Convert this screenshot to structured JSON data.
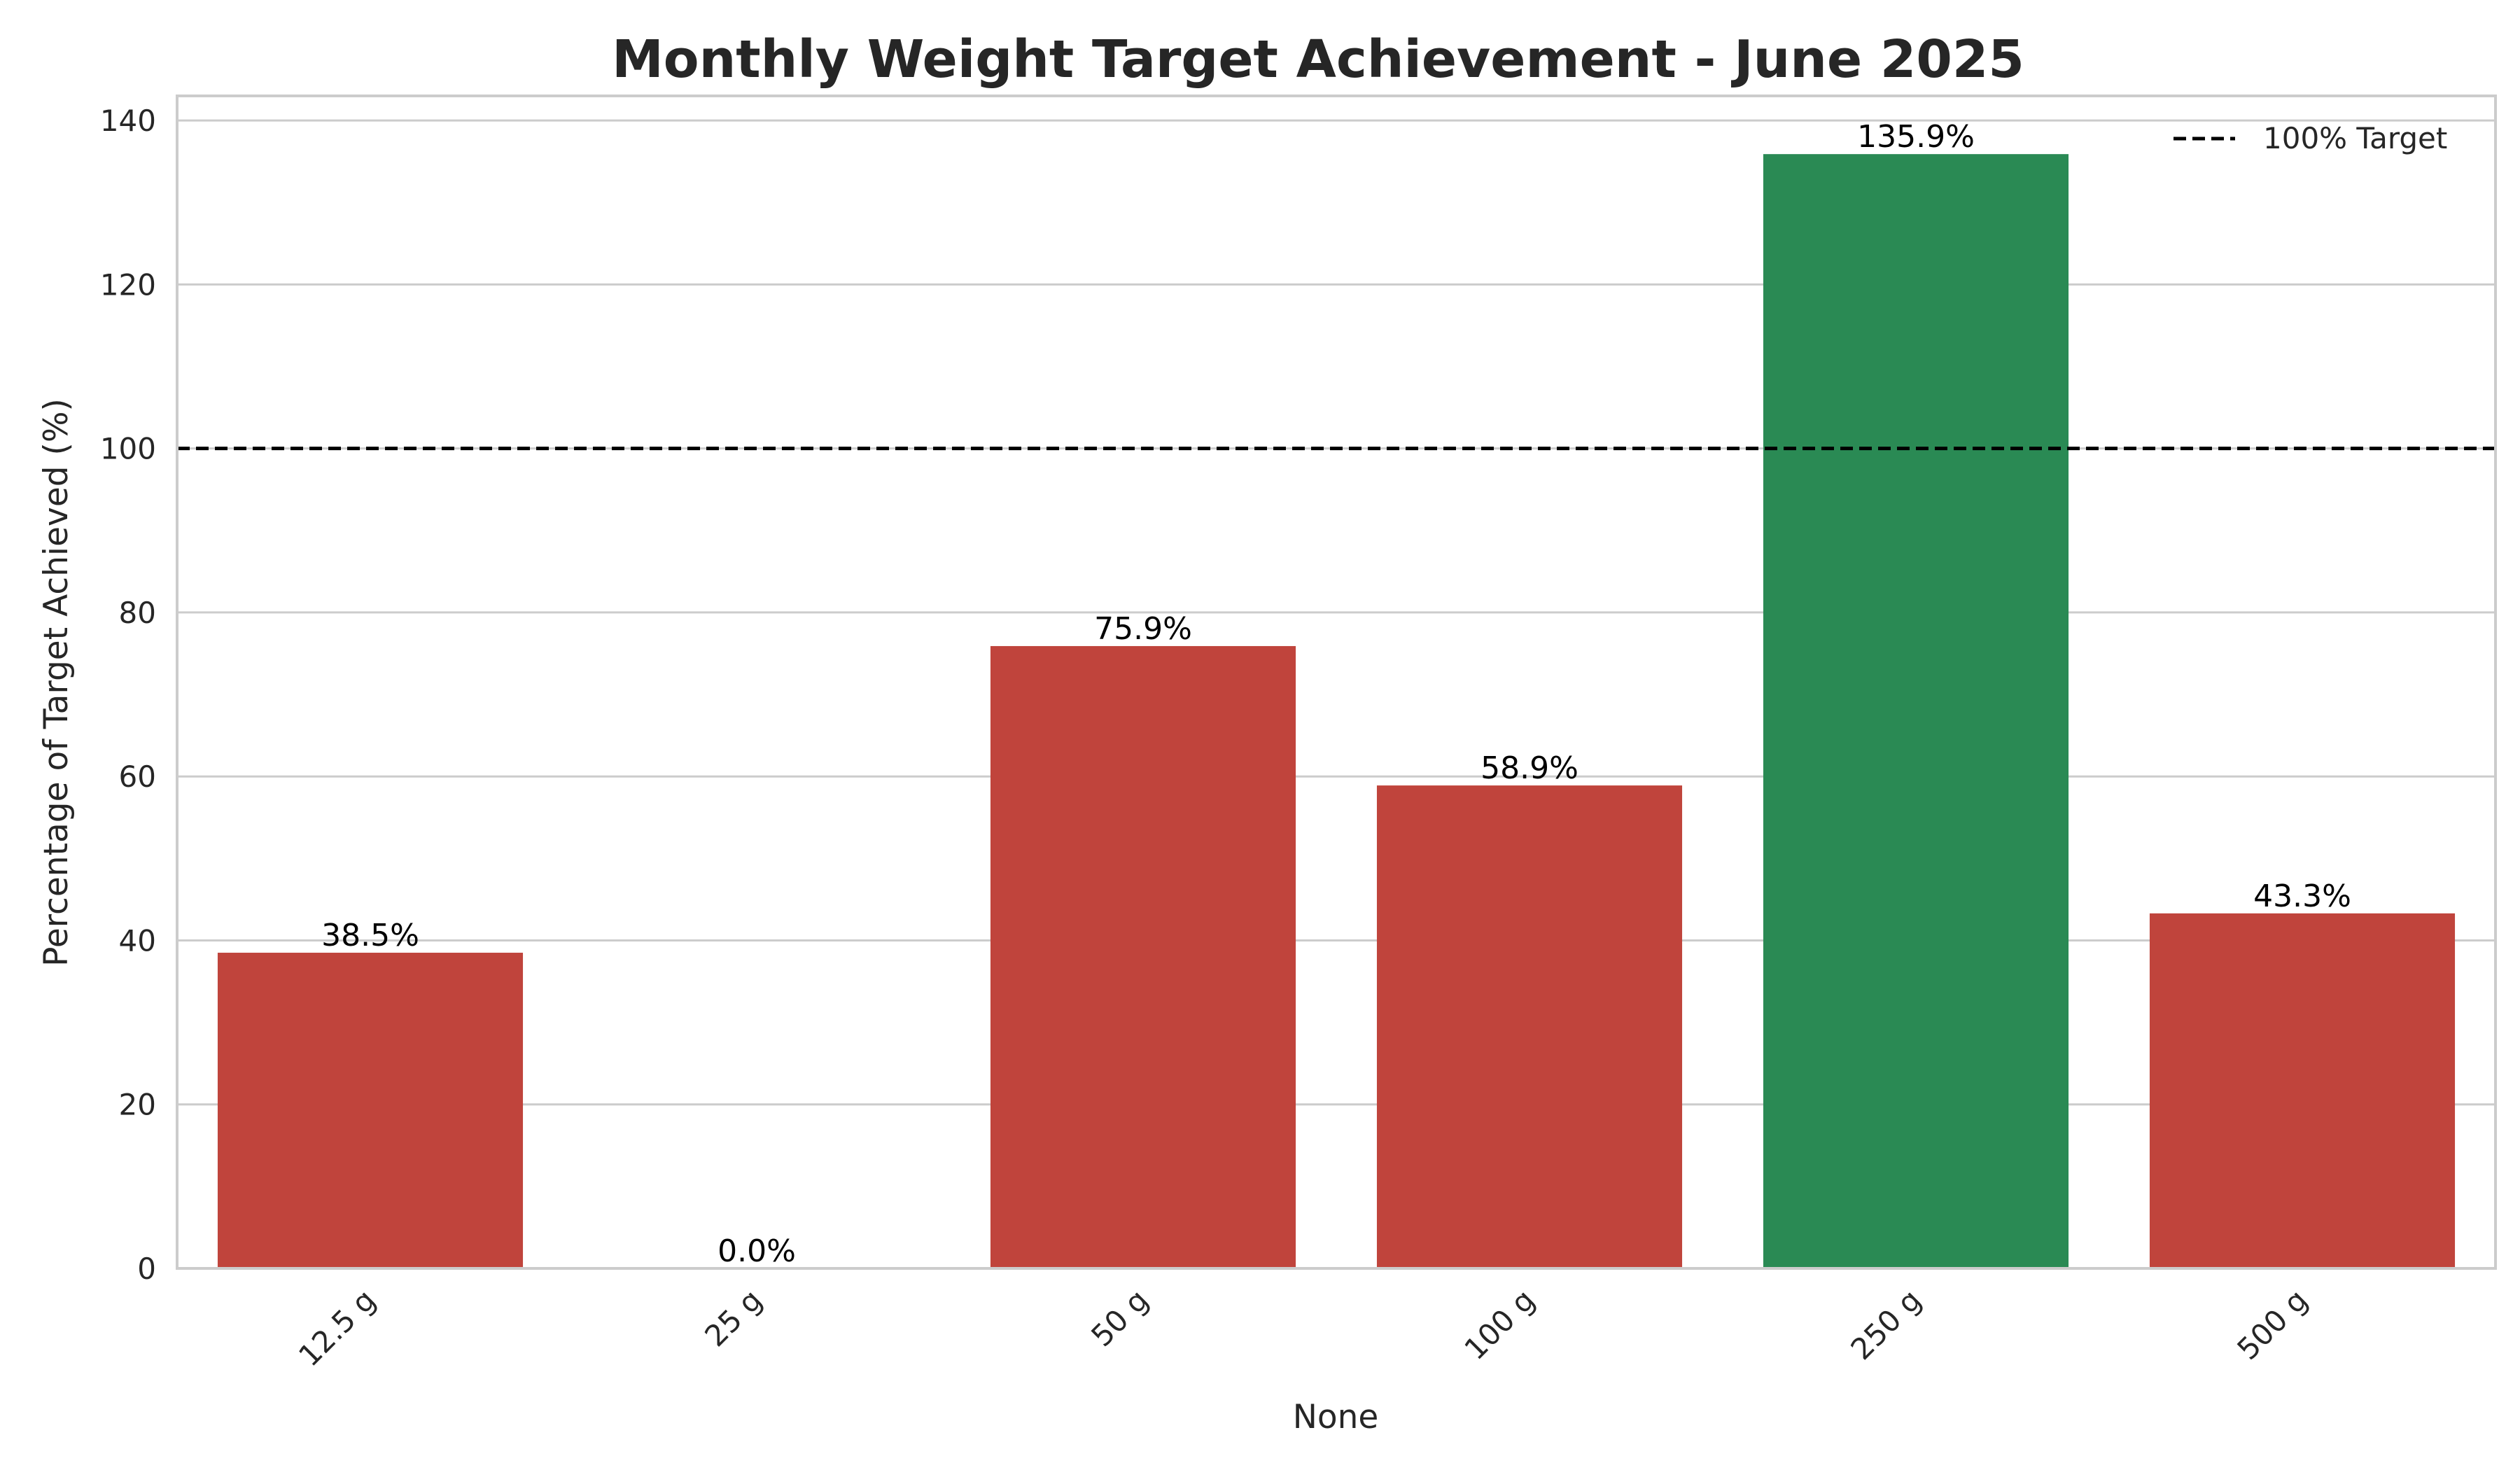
{
  "chart_data": {
    "type": "bar",
    "title": "Monthly Weight Target Achievement - June 2025",
    "xlabel": "None",
    "ylabel": "Percentage of Target Achieved (%)",
    "categories": [
      "12.5 g",
      "25 g",
      "50 g",
      "100 g",
      "250 g",
      "500 g"
    ],
    "values": [
      38.5,
      0.0,
      75.9,
      58.9,
      135.9,
      43.3
    ],
    "value_labels": [
      "38.5%",
      "0.0%",
      "75.9%",
      "58.9%",
      "135.9%",
      "43.3%"
    ],
    "bar_colors": [
      "#c0443c",
      "#c0443c",
      "#c0443c",
      "#c0443c",
      "#2a8a54",
      "#c0443c"
    ],
    "ylim": [
      0,
      143
    ],
    "yticks": [
      0,
      20,
      40,
      60,
      80,
      100,
      120,
      140
    ],
    "grid": true,
    "reference_line": {
      "value": 100,
      "label": "100% Target",
      "color": "#000000",
      "style": "dashed"
    },
    "legend": {
      "position": "top-right",
      "entries": [
        "100% Target"
      ]
    }
  }
}
